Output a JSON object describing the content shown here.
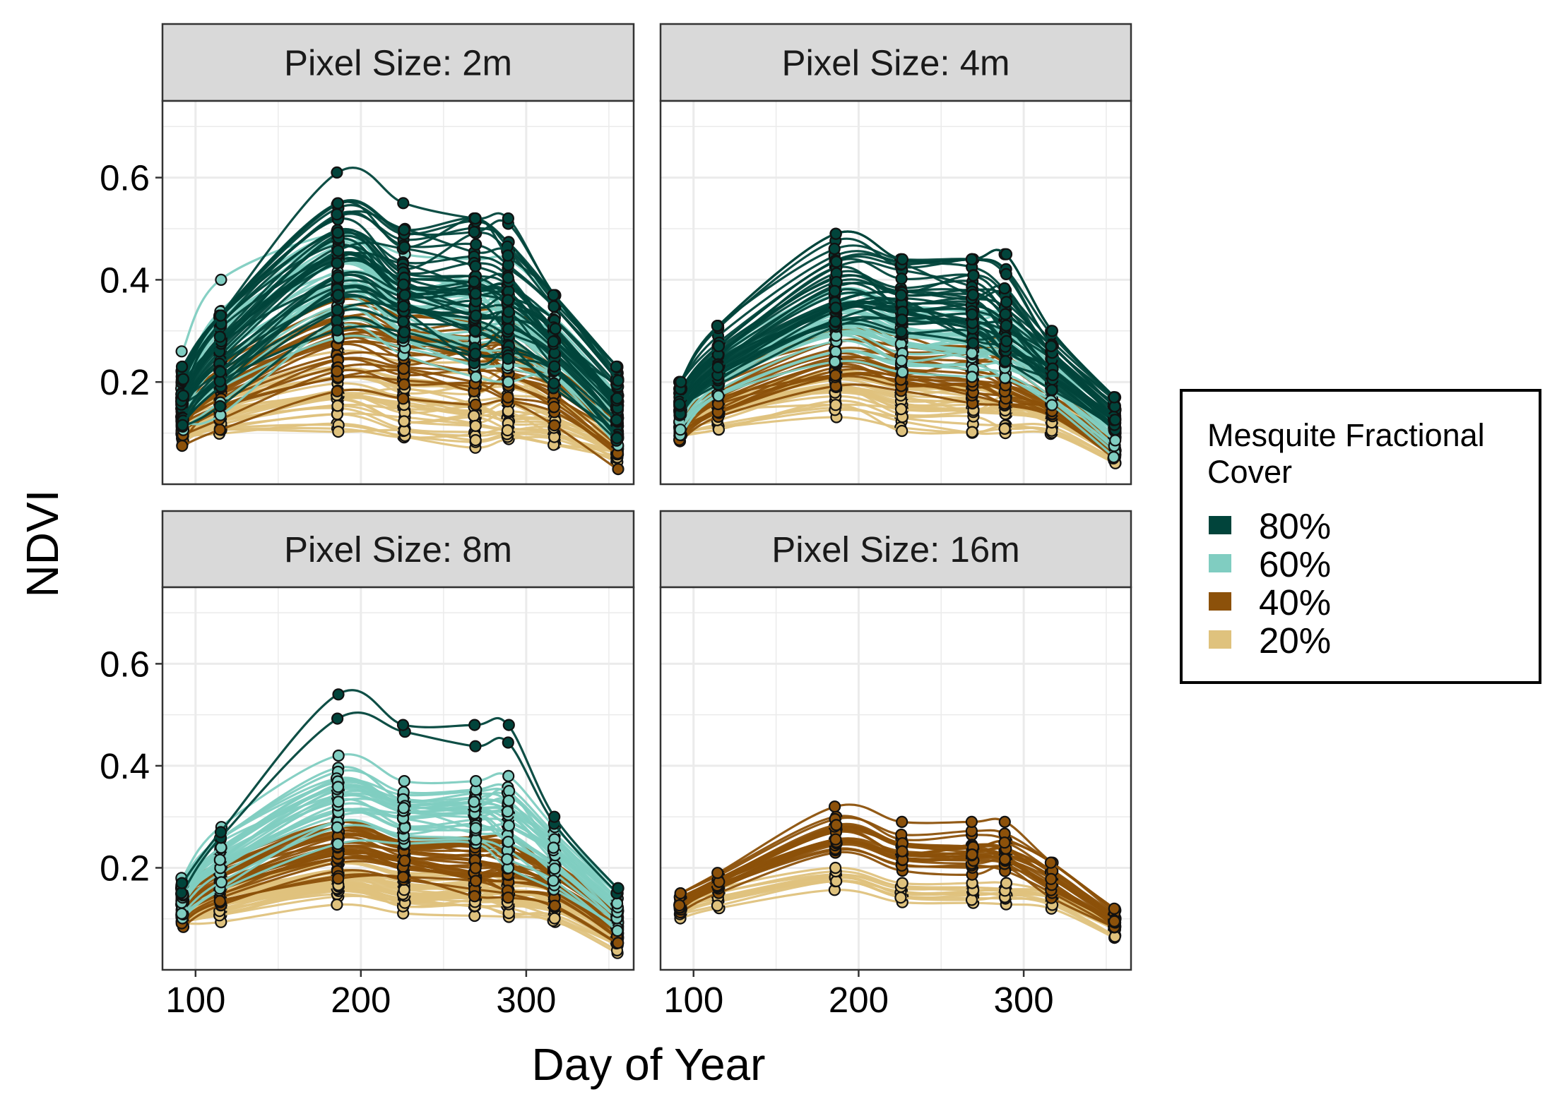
{
  "chart_data": {
    "type": "line",
    "xlabel": "Day of Year",
    "ylabel": "NDVI",
    "xlim": [
      80,
      365
    ],
    "ylim": [
      0,
      0.75
    ],
    "x_ticks": [
      100,
      200,
      300
    ],
    "y_ticks": [
      0.2,
      0.4,
      0.6
    ],
    "x_tick_labels": [
      "100",
      "200",
      "300"
    ],
    "y_tick_labels": [
      "0.2",
      "0.4",
      "0.6"
    ],
    "grid": true,
    "legend_position": "right",
    "legend": {
      "title_lines": [
        "Mesquite Fractional",
        "Cover"
      ],
      "entries": [
        {
          "label": "80%",
          "color": "#01443b"
        },
        {
          "label": "60%",
          "color": "#80cdc1"
        },
        {
          "label": "40%",
          "color": "#8c510a"
        },
        {
          "label": "20%",
          "color": "#dfc27d"
        }
      ]
    },
    "sample_days": [
      92,
      115,
      186,
      226,
      269,
      289,
      317,
      355
    ],
    "panels": [
      {
        "title": "Pixel Size: 2m",
        "groups": [
          {
            "cover": "80%",
            "count": 40,
            "mean": [
              0.17,
              0.27,
              0.44,
              0.39,
              0.38,
              0.36,
              0.29,
              0.16
            ],
            "spread": [
              0.03,
              0.05,
              0.06,
              0.05,
              0.07,
              0.06,
              0.05,
              0.04
            ],
            "max": [
              0.23,
              0.33,
              0.61,
              0.55,
              0.52,
              0.52,
              0.37,
              0.23
            ]
          },
          {
            "cover": "60%",
            "count": 30,
            "mean": [
              0.15,
              0.24,
              0.38,
              0.32,
              0.3,
              0.29,
              0.24,
              0.13
            ],
            "spread": [
              0.03,
              0.06,
              0.06,
              0.05,
              0.06,
              0.05,
              0.04,
              0.03
            ],
            "max": [
              0.26,
              0.4,
              0.49,
              0.45,
              0.44,
              0.44,
              0.36,
              0.22
            ]
          },
          {
            "cover": "40%",
            "count": 30,
            "mean": [
              0.13,
              0.19,
              0.29,
              0.27,
              0.26,
              0.25,
              0.2,
              0.11
            ],
            "spread": [
              0.02,
              0.03,
              0.04,
              0.04,
              0.04,
              0.04,
              0.03,
              0.03
            ],
            "max": [
              0.18,
              0.25,
              0.36,
              0.33,
              0.34,
              0.34,
              0.29,
              0.18
            ]
          },
          {
            "cover": "20%",
            "count": 30,
            "mean": [
              0.11,
              0.14,
              0.18,
              0.16,
              0.15,
              0.15,
              0.13,
              0.08
            ],
            "spread": [
              0.015,
              0.025,
              0.04,
              0.04,
              0.04,
              0.04,
              0.03,
              0.025
            ],
            "max": [
              0.14,
              0.2,
              0.26,
              0.24,
              0.24,
              0.25,
              0.2,
              0.13
            ]
          }
        ]
      },
      {
        "title": "Pixel Size: 4m",
        "groups": [
          {
            "cover": "80%",
            "count": 35,
            "mean": [
              0.17,
              0.25,
              0.39,
              0.37,
              0.36,
              0.33,
              0.24,
              0.14
            ],
            "spread": [
              0.02,
              0.03,
              0.05,
              0.04,
              0.05,
              0.05,
              0.03,
              0.02
            ],
            "max": [
              0.2,
              0.31,
              0.49,
              0.44,
              0.44,
              0.45,
              0.3,
              0.17
            ]
          },
          {
            "cover": "60%",
            "count": 30,
            "mean": [
              0.15,
              0.22,
              0.33,
              0.3,
              0.29,
              0.28,
              0.21,
              0.11
            ],
            "spread": [
              0.02,
              0.02,
              0.03,
              0.03,
              0.03,
              0.03,
              0.02,
              0.02
            ],
            "max": [
              0.18,
              0.26,
              0.38,
              0.35,
              0.34,
              0.33,
              0.25,
              0.14
            ]
          },
          {
            "cover": "40%",
            "count": 30,
            "mean": [
              0.13,
              0.18,
              0.26,
              0.24,
              0.23,
              0.22,
              0.17,
              0.09
            ],
            "spread": [
              0.02,
              0.02,
              0.03,
              0.03,
              0.03,
              0.03,
              0.02,
              0.02
            ],
            "max": [
              0.16,
              0.22,
              0.3,
              0.29,
              0.28,
              0.28,
              0.21,
              0.12
            ]
          },
          {
            "cover": "20%",
            "count": 30,
            "mean": [
              0.11,
              0.14,
              0.18,
              0.16,
              0.15,
              0.15,
              0.13,
              0.07
            ],
            "spread": [
              0.01,
              0.02,
              0.03,
              0.03,
              0.03,
              0.03,
              0.02,
              0.02
            ],
            "max": [
              0.13,
              0.17,
              0.22,
              0.2,
              0.19,
              0.19,
              0.16,
              0.1
            ]
          }
        ]
      },
      {
        "title": "Pixel Size: 8m",
        "groups": [
          {
            "cover": "80%",
            "count": 2,
            "mean": [
              0.15,
              0.25,
              0.47,
              0.44,
              0.43,
              0.4,
              0.29,
              0.15
            ],
            "spread": [
              0.02,
              0.02,
              0.08,
              0.06,
              0.07,
              0.08,
              0.02,
              0.01
            ],
            "max": [
              0.17,
              0.27,
              0.54,
              0.48,
              0.48,
              0.48,
              0.3,
              0.16
            ]
          },
          {
            "cover": "60%",
            "count": 30,
            "mean": [
              0.15,
              0.22,
              0.34,
              0.31,
              0.31,
              0.3,
              0.23,
              0.12
            ],
            "spread": [
              0.02,
              0.03,
              0.04,
              0.03,
              0.03,
              0.04,
              0.03,
              0.02
            ],
            "max": [
              0.18,
              0.28,
              0.42,
              0.37,
              0.37,
              0.38,
              0.28,
              0.16
            ]
          },
          {
            "cover": "40%",
            "count": 35,
            "mean": [
              0.13,
              0.17,
              0.24,
              0.22,
              0.21,
              0.2,
              0.17,
              0.09
            ],
            "spread": [
              0.02,
              0.02,
              0.03,
              0.02,
              0.03,
              0.03,
              0.02,
              0.02
            ],
            "max": [
              0.16,
              0.21,
              0.29,
              0.26,
              0.26,
              0.26,
              0.21,
              0.12
            ]
          },
          {
            "cover": "20%",
            "count": 35,
            "mean": [
              0.11,
              0.13,
              0.17,
              0.15,
              0.15,
              0.14,
              0.13,
              0.07
            ],
            "spread": [
              0.01,
              0.02,
              0.02,
              0.02,
              0.02,
              0.02,
              0.02,
              0.02
            ],
            "max": [
              0.13,
              0.16,
              0.21,
              0.19,
              0.19,
              0.18,
              0.16,
              0.09
            ]
          }
        ]
      },
      {
        "title": "Pixel Size: 16m",
        "groups": [
          {
            "cover": "40%",
            "count": 25,
            "mean": [
              0.13,
              0.17,
              0.26,
              0.23,
              0.23,
              0.23,
              0.18,
              0.1
            ],
            "spread": [
              0.01,
              0.01,
              0.02,
              0.02,
              0.02,
              0.02,
              0.02,
              0.01
            ],
            "max": [
              0.15,
              0.19,
              0.32,
              0.29,
              0.29,
              0.29,
              0.21,
              0.12
            ]
          },
          {
            "cover": "20%",
            "count": 12,
            "mean": [
              0.12,
              0.14,
              0.18,
              0.15,
              0.15,
              0.15,
              0.14,
              0.08
            ],
            "spread": [
              0.01,
              0.01,
              0.01,
              0.01,
              0.01,
              0.01,
              0.01,
              0.01
            ],
            "max": [
              0.13,
              0.16,
              0.2,
              0.17,
              0.17,
              0.17,
              0.15,
              0.09
            ]
          }
        ]
      }
    ]
  }
}
